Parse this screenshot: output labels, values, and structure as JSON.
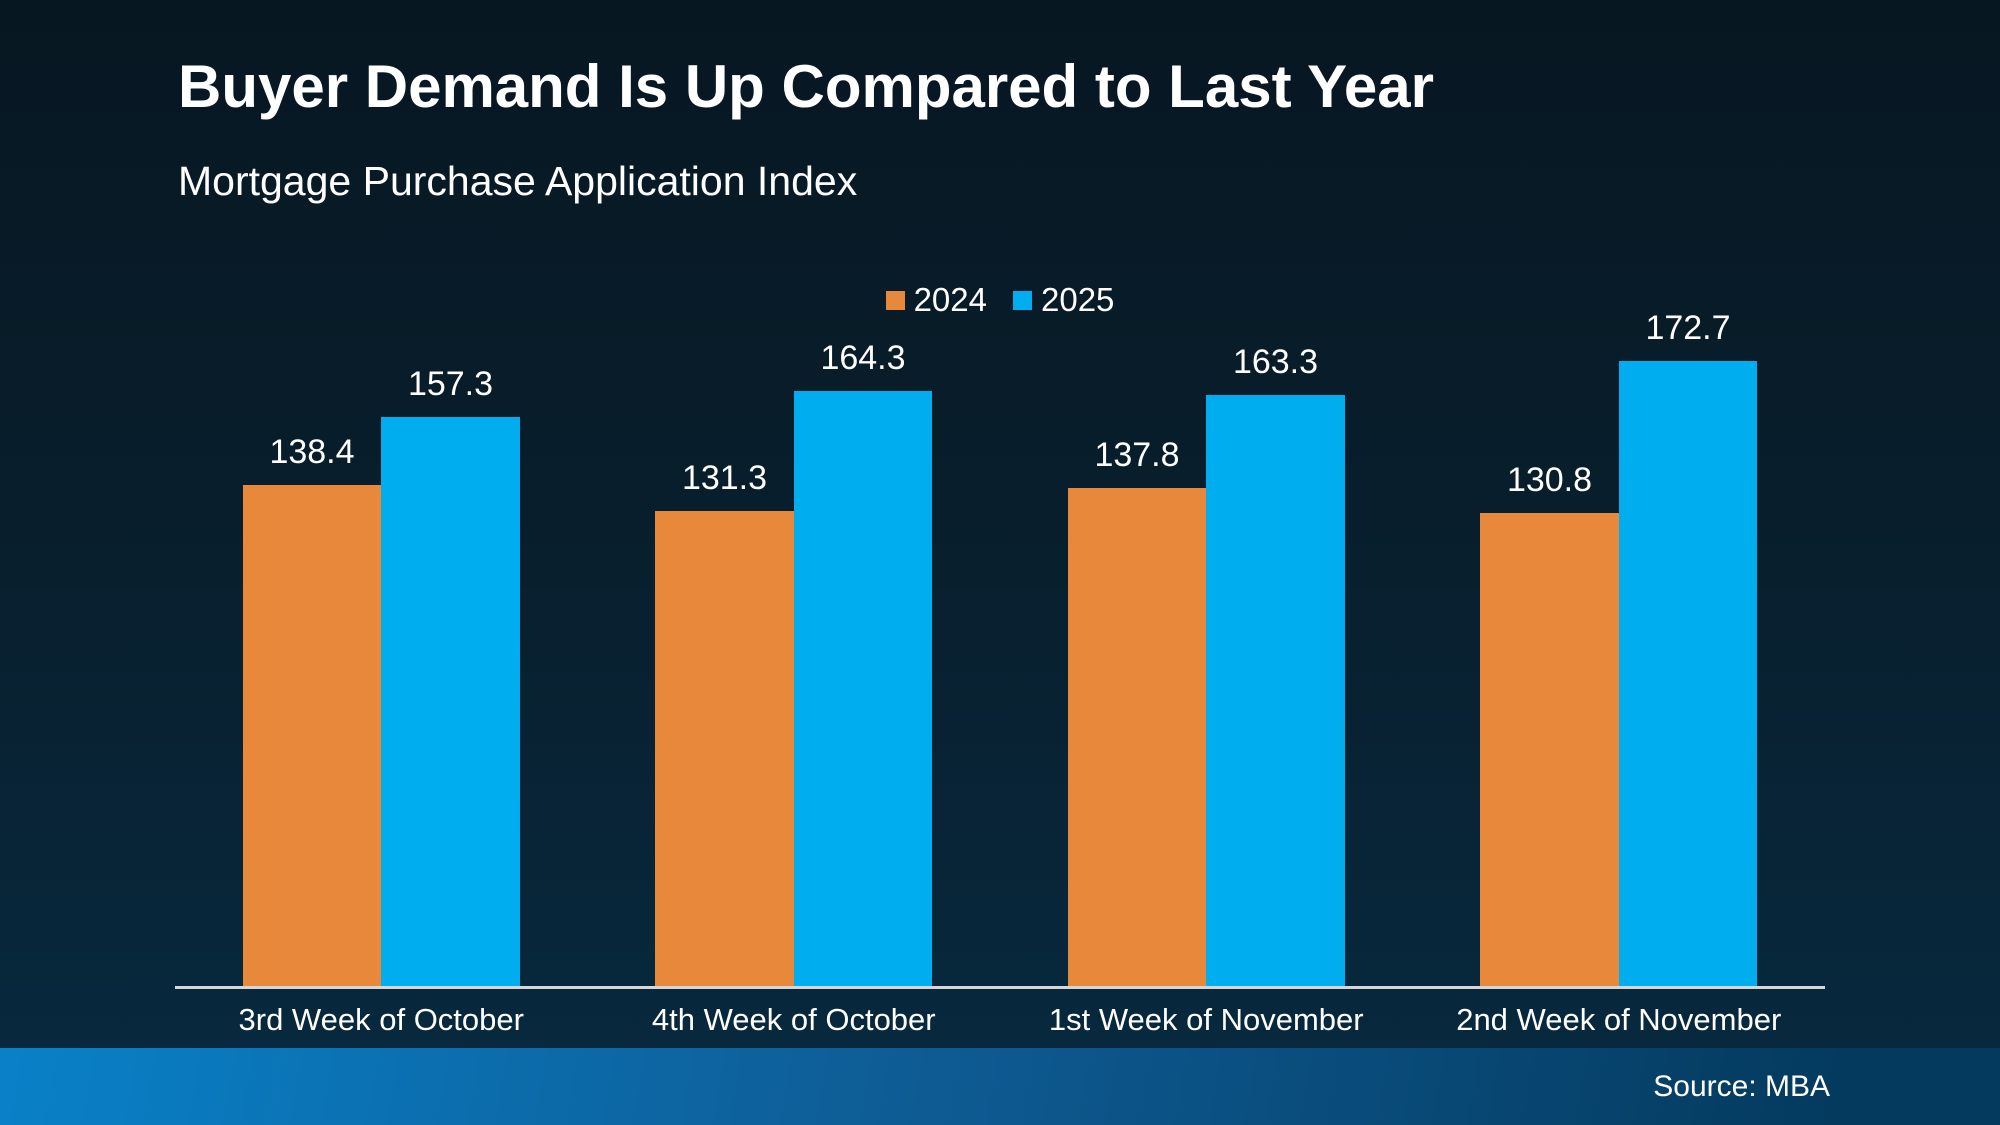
{
  "header": {
    "title": "Buyer Demand Is Up Compared to Last Year",
    "subtitle": "Mortgage Purchase Application Index"
  },
  "footer": {
    "source": "Source: MBA"
  },
  "colors": {
    "accent_2024": "#E8883B",
    "accent_2025": "#00AEEF",
    "axis_line": "#D6D6D6",
    "text": "#FFFFFF",
    "background_top": "#071722",
    "background_bottom": "#072A40",
    "footer_gradient_left": "#0981C8",
    "footer_gradient_right": "#043A5E"
  },
  "chart_data": {
    "type": "bar",
    "title": "Buyer Demand Is Up Compared to Last Year",
    "subtitle": "Mortgage Purchase Application Index",
    "categories": [
      "3rd Week of October",
      "4th Week of October",
      "1st Week of November",
      "2nd Week of November"
    ],
    "series": [
      {
        "name": "2024",
        "color": "#E8883B",
        "values": [
          138.4,
          131.3,
          137.8,
          130.8
        ]
      },
      {
        "name": "2025",
        "color": "#00AEEF",
        "values": [
          157.3,
          164.3,
          163.3,
          172.7
        ]
      }
    ],
    "xlabel": "",
    "ylabel": "",
    "ylim": [
      0,
      190
    ],
    "grid": false,
    "legend_position": "top-center",
    "value_labels": true,
    "source": "Source: MBA"
  }
}
